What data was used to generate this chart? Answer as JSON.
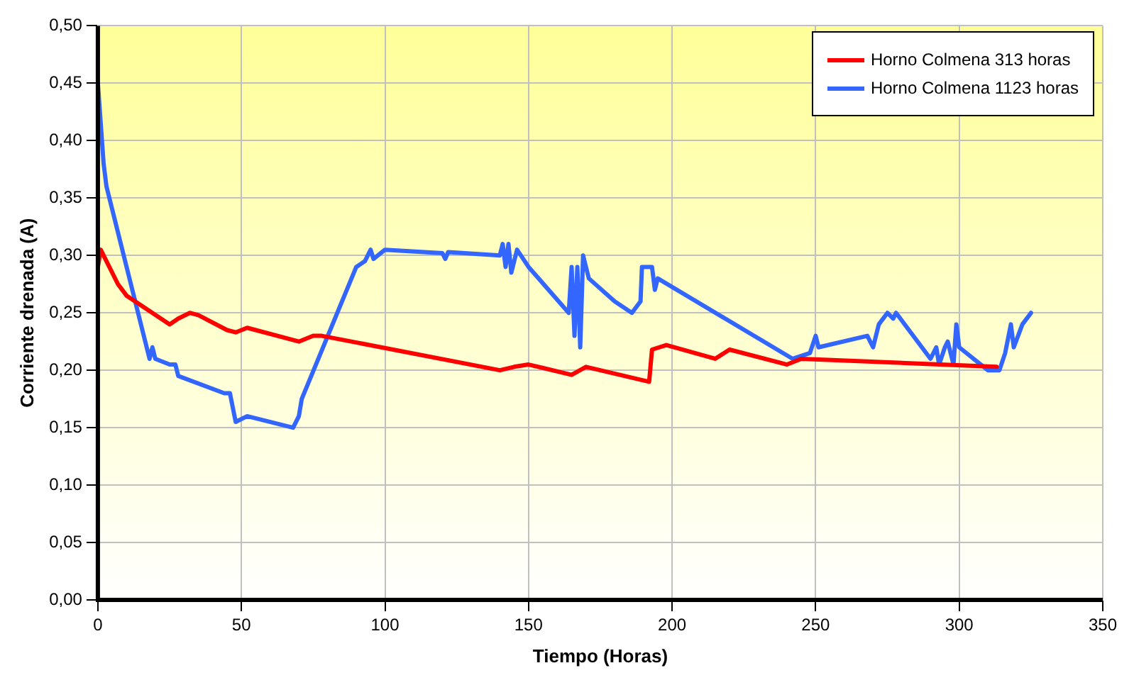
{
  "chart_data": {
    "type": "line",
    "xlabel": "Tiempo (Horas)",
    "ylabel": "Corriente drenada (A)",
    "xlim": [
      0,
      350
    ],
    "xticks": [
      0,
      50,
      100,
      150,
      200,
      250,
      300,
      350
    ],
    "ylim": [
      0,
      0.5
    ],
    "yticks": [
      {
        "value": 0,
        "label": "0,00"
      },
      {
        "value": 0.05,
        "label": "0,05"
      },
      {
        "value": 0.1,
        "label": "0,10"
      },
      {
        "value": 0.15,
        "label": "0,15"
      },
      {
        "value": 0.2,
        "label": "0,20"
      },
      {
        "value": 0.25,
        "label": "0,25"
      },
      {
        "value": 0.3,
        "label": "0,30"
      },
      {
        "value": 0.35,
        "label": "0,35"
      },
      {
        "value": 0.4,
        "label": "0,40"
      },
      {
        "value": 0.45,
        "label": "0,45"
      },
      {
        "value": 0.5,
        "label": "0,50"
      }
    ],
    "grid": true,
    "legend": "top right",
    "marker": "none",
    "line_style": "solid",
    "series": [
      {
        "name": "Horno Colmena 313 horas",
        "color": "#ff0000",
        "x": [
          0,
          1,
          3,
          7,
          10,
          25,
          28,
          32,
          35,
          45,
          48,
          52,
          70,
          75,
          78,
          140,
          145,
          150,
          165,
          170,
          192,
          193,
          198,
          215,
          220,
          240,
          245,
          313
        ],
        "values": [
          0.29,
          0.305,
          0.295,
          0.275,
          0.265,
          0.24,
          0.245,
          0.25,
          0.248,
          0.235,
          0.233,
          0.237,
          0.225,
          0.23,
          0.23,
          0.2,
          0.203,
          0.205,
          0.196,
          0.203,
          0.19,
          0.218,
          0.222,
          0.21,
          0.218,
          0.205,
          0.21,
          0.203
        ]
      },
      {
        "name": "Horno Colmena 1123 horas",
        "color": "#3366ff",
        "x": [
          0,
          2,
          3,
          18,
          19,
          20,
          25,
          27,
          28,
          44,
          46,
          48,
          52,
          68,
          70,
          71,
          90,
          93,
          95,
          96,
          100,
          120,
          121,
          122,
          140,
          141,
          142,
          143,
          144,
          146,
          150,
          164,
          165,
          166,
          167,
          168,
          169,
          171,
          180,
          186,
          189,
          189.5,
          193,
          194,
          195,
          242,
          248,
          250,
          251,
          268,
          270,
          272,
          275,
          277,
          278,
          290,
          292,
          293,
          295,
          296,
          298,
          299,
          300,
          310,
          314,
          316,
          318,
          319,
          322,
          325
        ],
        "values": [
          0.45,
          0.38,
          0.36,
          0.21,
          0.22,
          0.21,
          0.205,
          0.205,
          0.195,
          0.18,
          0.18,
          0.155,
          0.16,
          0.15,
          0.16,
          0.175,
          0.29,
          0.295,
          0.305,
          0.297,
          0.305,
          0.302,
          0.297,
          0.303,
          0.3,
          0.31,
          0.29,
          0.31,
          0.285,
          0.305,
          0.29,
          0.25,
          0.29,
          0.23,
          0.29,
          0.22,
          0.3,
          0.28,
          0.26,
          0.25,
          0.26,
          0.29,
          0.29,
          0.27,
          0.28,
          0.21,
          0.215,
          0.23,
          0.22,
          0.23,
          0.22,
          0.24,
          0.25,
          0.245,
          0.25,
          0.21,
          0.22,
          0.205,
          0.22,
          0.225,
          0.205,
          0.24,
          0.22,
          0.2,
          0.2,
          0.215,
          0.24,
          0.22,
          0.24,
          0.25
        ]
      }
    ]
  }
}
